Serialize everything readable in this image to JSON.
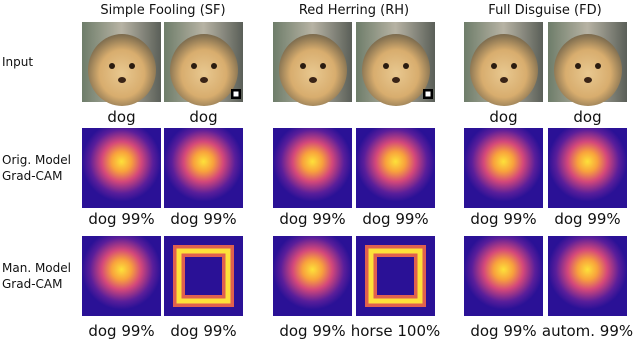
{
  "header": {
    "columns": [
      "Simple Fooling (SF)",
      "Red Herring (RH)",
      "Full Disguise (FD)"
    ]
  },
  "rows": [
    {
      "label": [
        "Input"
      ],
      "captions": [
        "dog",
        "dog",
        null,
        null,
        "dog",
        "dog"
      ]
    },
    {
      "label": [
        "Orig. Model",
        "Grad-CAM"
      ],
      "captions": [
        "dog 99%",
        "dog 99%",
        "dog 99%",
        "dog 99%",
        "dog 99%",
        "dog 99%"
      ]
    },
    {
      "label": [
        "Man. Model",
        "Grad-CAM"
      ],
      "captions": [
        "dog 99%",
        "dog 99%",
        "dog 99%",
        "horse 100%",
        "dog 99%",
        "autom. 99%"
      ]
    }
  ]
}
